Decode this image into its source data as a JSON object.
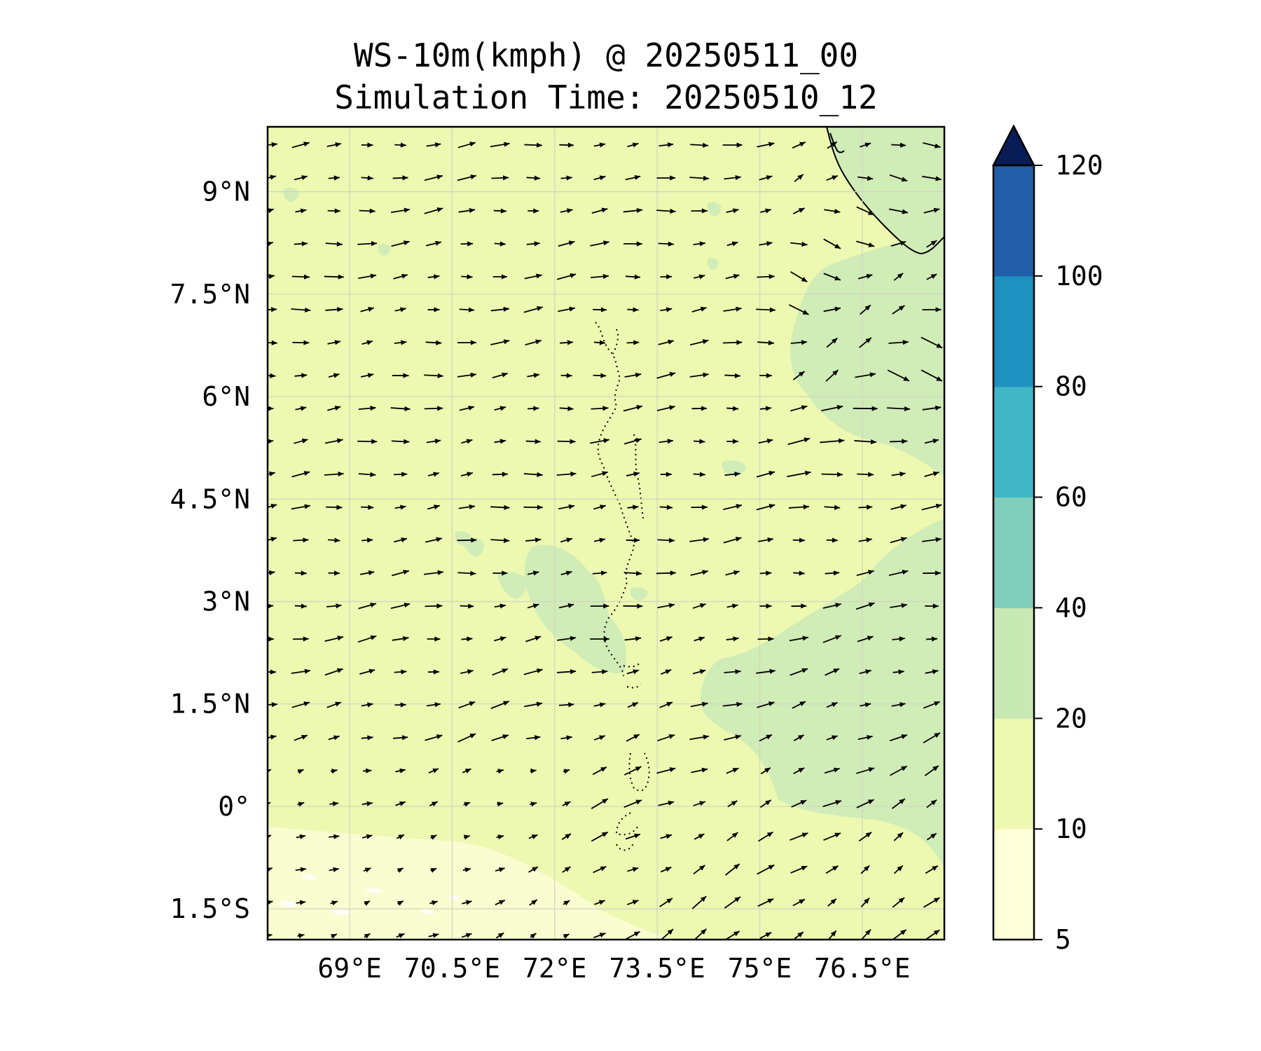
{
  "title_line1": "WS-10m(kmph) @ 20250511_00",
  "title_line2": "Simulation Time: 20250510_12",
  "map": {
    "lon_range": [
      67.8,
      77.7
    ],
    "lat_range": [
      -1.95,
      9.95
    ],
    "lat_ticks": [
      {
        "value": 9,
        "label": "9°N"
      },
      {
        "value": 7.5,
        "label": "7.5°N"
      },
      {
        "value": 6,
        "label": "6°N"
      },
      {
        "value": 4.5,
        "label": "4.5°N"
      },
      {
        "value": 3,
        "label": "3°N"
      },
      {
        "value": 1.5,
        "label": "1.5°N"
      },
      {
        "value": 0,
        "label": "0°"
      },
      {
        "value": -1.5,
        "label": "1.5°S"
      }
    ],
    "lon_ticks": [
      {
        "value": 69,
        "label": "69°E"
      },
      {
        "value": 70.5,
        "label": "70.5°E"
      },
      {
        "value": 72,
        "label": "72°E"
      },
      {
        "value": 73.5,
        "label": "73.5°E"
      },
      {
        "value": 75,
        "label": "75°E"
      },
      {
        "value": 76.5,
        "label": "76.5°E"
      }
    ],
    "gridlines": true,
    "background_color": "#edf8b1",
    "wind_vectors": "westerly, turning south-westerly in the south-east"
  },
  "colorbar": {
    "levels": [
      5,
      10,
      20,
      40,
      60,
      80,
      100,
      120
    ],
    "tick_labels": [
      "5",
      "10",
      "20",
      "40",
      "60",
      "80",
      "100",
      "120"
    ],
    "colors": [
      "#ffffd9",
      "#edf8b1",
      "#c7e9b4",
      "#7fcdbb",
      "#41b6c4",
      "#1d91c0",
      "#225ea8",
      "#0c2c84"
    ],
    "extend": "max",
    "extend_color": "#081d58"
  }
}
